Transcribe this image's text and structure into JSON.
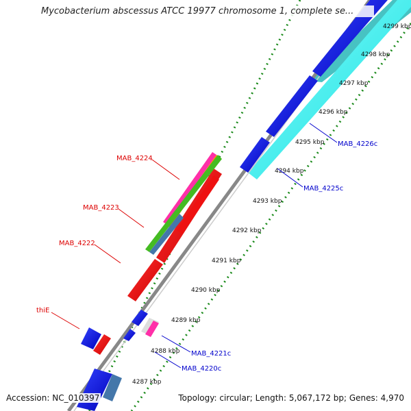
{
  "title": "Mycobacterium abscessus ATCC 19977 chromosome 1, complete se...",
  "footer": {
    "accession": "Accession: NC_010397",
    "summary": "Topology: circular; Length: 5,067,172 bp; Genes: 4,970"
  },
  "colors": {
    "backbone": "#999999",
    "forward_cds": "#ee0000",
    "reverse_cds": "#0000dd",
    "cyan_track": "#22eeee",
    "teal_track": "#33bbbb",
    "gc_dots": "#1a8a1a",
    "label_red": "#dd0000",
    "label_blue": "#0000cc"
  },
  "kbp_ticks": [
    "4287 kbp",
    "4288 kbp",
    "4289 kbp",
    "4290 kbp",
    "4291 kbp",
    "4292 kbp",
    "4293 kbp",
    "4294 kbp",
    "4295 kbp",
    "4296 kbp",
    "4297 kbp",
    "4298 kbp",
    "4299 kbp"
  ],
  "gene_labels": {
    "left": [
      "MAB_4224",
      "MAB_4223",
      "MAB_4222",
      "thiE"
    ],
    "right": [
      "MAB_4226c",
      "MAB_4225c",
      "MAB_4221c",
      "MAB_4220c"
    ]
  }
}
